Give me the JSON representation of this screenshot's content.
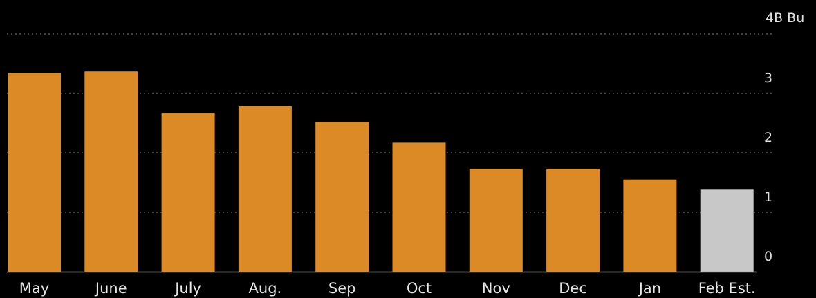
{
  "chart_data": {
    "type": "bar",
    "categories": [
      "May",
      "June",
      "July",
      "Aug.",
      "Sep",
      "Oct",
      "Nov",
      "Dec",
      "Jan",
      "Feb Est."
    ],
    "values": [
      3.34,
      3.37,
      2.67,
      2.78,
      2.52,
      2.17,
      1.73,
      1.73,
      1.55,
      1.38
    ],
    "bar_colors": [
      "#dc8a26",
      "#dc8a26",
      "#dc8a26",
      "#dc8a26",
      "#dc8a26",
      "#dc8a26",
      "#dc8a26",
      "#dc8a26",
      "#dc8a26",
      "#c8c8c8"
    ],
    "ylim": [
      0,
      4
    ],
    "yticks": [
      0,
      1,
      2,
      3,
      4
    ],
    "ytick_labels": [
      "0",
      "1",
      "2",
      "3",
      "4B Bu"
    ],
    "grid": true,
    "grid_style": "dotted",
    "y_axis_position": "right",
    "title": "",
    "xlabel": "",
    "ylabel": ""
  }
}
